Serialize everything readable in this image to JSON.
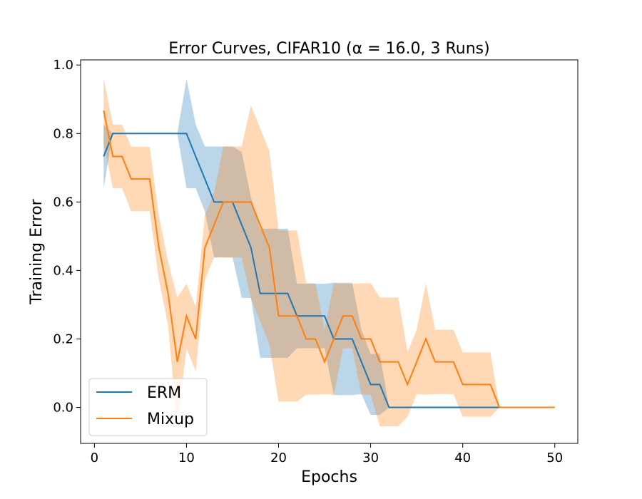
{
  "chart_data": {
    "type": "line",
    "title": "Error Curves, CIFAR10 (α = 16.0, 3 Runs)",
    "xlabel": "Epochs",
    "ylabel": "Training Error",
    "xlim": [
      -1.5,
      52.5
    ],
    "ylim": [
      -0.105,
      1.015
    ],
    "xticks": [
      0,
      10,
      20,
      30,
      40,
      50
    ],
    "yticks": [
      0.0,
      0.2,
      0.4,
      0.6,
      0.8,
      1.0
    ],
    "xtick_labels": [
      "0",
      "10",
      "20",
      "30",
      "40",
      "50"
    ],
    "ytick_labels": [
      "0.0",
      "0.2",
      "0.4",
      "0.6",
      "0.8",
      "1.0"
    ],
    "grid": false,
    "legend_position": "lower-left",
    "series": [
      {
        "name": "ERM",
        "color": "#1f77b4",
        "x": [
          1,
          2,
          3,
          4,
          5,
          6,
          7,
          8,
          9,
          10,
          11,
          12,
          13,
          14,
          15,
          16,
          17,
          18,
          19,
          20,
          21,
          22,
          23,
          24,
          25,
          26,
          27,
          28,
          29,
          30,
          31,
          32,
          33,
          34,
          35,
          36,
          37,
          38,
          39,
          40,
          41,
          42,
          43,
          44
        ],
        "y": [
          0.733,
          0.8,
          0.8,
          0.8,
          0.8,
          0.8,
          0.8,
          0.8,
          0.8,
          0.8,
          0.733,
          0.667,
          0.6,
          0.6,
          0.6,
          0.533,
          0.467,
          0.333,
          0.333,
          0.333,
          0.333,
          0.267,
          0.267,
          0.267,
          0.267,
          0.2,
          0.2,
          0.2,
          0.133,
          0.067,
          0.067,
          0.0,
          0.0,
          0.0,
          0.0,
          0.0,
          0.0,
          0.0,
          0.0,
          0.0,
          0.0,
          0.0,
          0.0,
          0.0
        ],
        "lower": [
          0.64,
          0.8,
          0.8,
          0.8,
          0.8,
          0.8,
          0.8,
          0.8,
          0.8,
          0.64,
          0.64,
          0.572,
          0.438,
          0.438,
          0.438,
          0.32,
          0.32,
          0.145,
          0.145,
          0.145,
          0.145,
          0.173,
          0.173,
          0.173,
          0.173,
          0.036,
          0.036,
          0.036,
          0.039,
          -0.022,
          -0.022,
          0.0,
          0.0,
          0.0,
          0.0,
          0.0,
          0.0,
          0.0,
          0.0,
          0.0,
          0.0,
          0.0,
          0.0,
          0.0
        ],
        "upper": [
          0.826,
          0.8,
          0.8,
          0.8,
          0.8,
          0.8,
          0.8,
          0.8,
          0.8,
          0.96,
          0.826,
          0.762,
          0.762,
          0.762,
          0.762,
          0.746,
          0.614,
          0.522,
          0.522,
          0.522,
          0.522,
          0.361,
          0.361,
          0.361,
          0.361,
          0.364,
          0.364,
          0.364,
          0.227,
          0.156,
          0.156,
          0.0,
          0.0,
          0.0,
          0.0,
          0.0,
          0.0,
          0.0,
          0.0,
          0.0,
          0.0,
          0.0,
          0.0,
          0.0
        ]
      },
      {
        "name": "Mixup",
        "color": "#ff7f0e",
        "x": [
          1,
          2,
          3,
          4,
          5,
          6,
          7,
          8,
          9,
          10,
          11,
          12,
          13,
          14,
          15,
          16,
          17,
          18,
          19,
          20,
          21,
          22,
          23,
          24,
          25,
          26,
          27,
          28,
          29,
          30,
          31,
          32,
          33,
          34,
          35,
          36,
          37,
          38,
          39,
          40,
          41,
          42,
          43,
          44,
          45,
          46,
          47,
          48,
          49,
          50
        ],
        "y": [
          0.867,
          0.733,
          0.733,
          0.667,
          0.667,
          0.667,
          0.467,
          0.333,
          0.133,
          0.267,
          0.2,
          0.467,
          0.533,
          0.6,
          0.6,
          0.6,
          0.6,
          0.533,
          0.467,
          0.267,
          0.267,
          0.267,
          0.2,
          0.2,
          0.133,
          0.2,
          0.267,
          0.267,
          0.2,
          0.2,
          0.133,
          0.133,
          0.133,
          0.067,
          0.133,
          0.2,
          0.133,
          0.133,
          0.133,
          0.067,
          0.067,
          0.067,
          0.067,
          0.0,
          0.0,
          0.0,
          0.0,
          0.0,
          0.0,
          0.0
        ],
        "lower": [
          0.773,
          0.64,
          0.64,
          0.573,
          0.573,
          0.573,
          0.373,
          0.24,
          -0.055,
          0.173,
          0.106,
          0.373,
          0.439,
          0.438,
          0.438,
          0.438,
          0.318,
          0.251,
          0.185,
          0.017,
          0.017,
          0.017,
          0.037,
          0.037,
          0.039,
          0.037,
          0.173,
          0.173,
          0.037,
          0.037,
          -0.055,
          -0.055,
          -0.055,
          -0.027,
          0.039,
          0.037,
          0.039,
          0.039,
          0.039,
          -0.027,
          -0.027,
          -0.027,
          -0.027,
          0.0,
          0.0,
          0.0,
          0.0,
          0.0,
          0.0,
          0.0
        ],
        "upper": [
          0.961,
          0.826,
          0.826,
          0.761,
          0.761,
          0.761,
          0.561,
          0.426,
          0.321,
          0.361,
          0.294,
          0.561,
          0.627,
          0.762,
          0.762,
          0.762,
          0.882,
          0.815,
          0.749,
          0.517,
          0.517,
          0.517,
          0.363,
          0.363,
          0.227,
          0.363,
          0.361,
          0.361,
          0.363,
          0.363,
          0.321,
          0.321,
          0.321,
          0.161,
          0.227,
          0.363,
          0.227,
          0.227,
          0.227,
          0.161,
          0.161,
          0.161,
          0.161,
          0.0,
          0.0,
          0.0,
          0.0,
          0.0,
          0.0,
          0.0
        ]
      }
    ]
  }
}
